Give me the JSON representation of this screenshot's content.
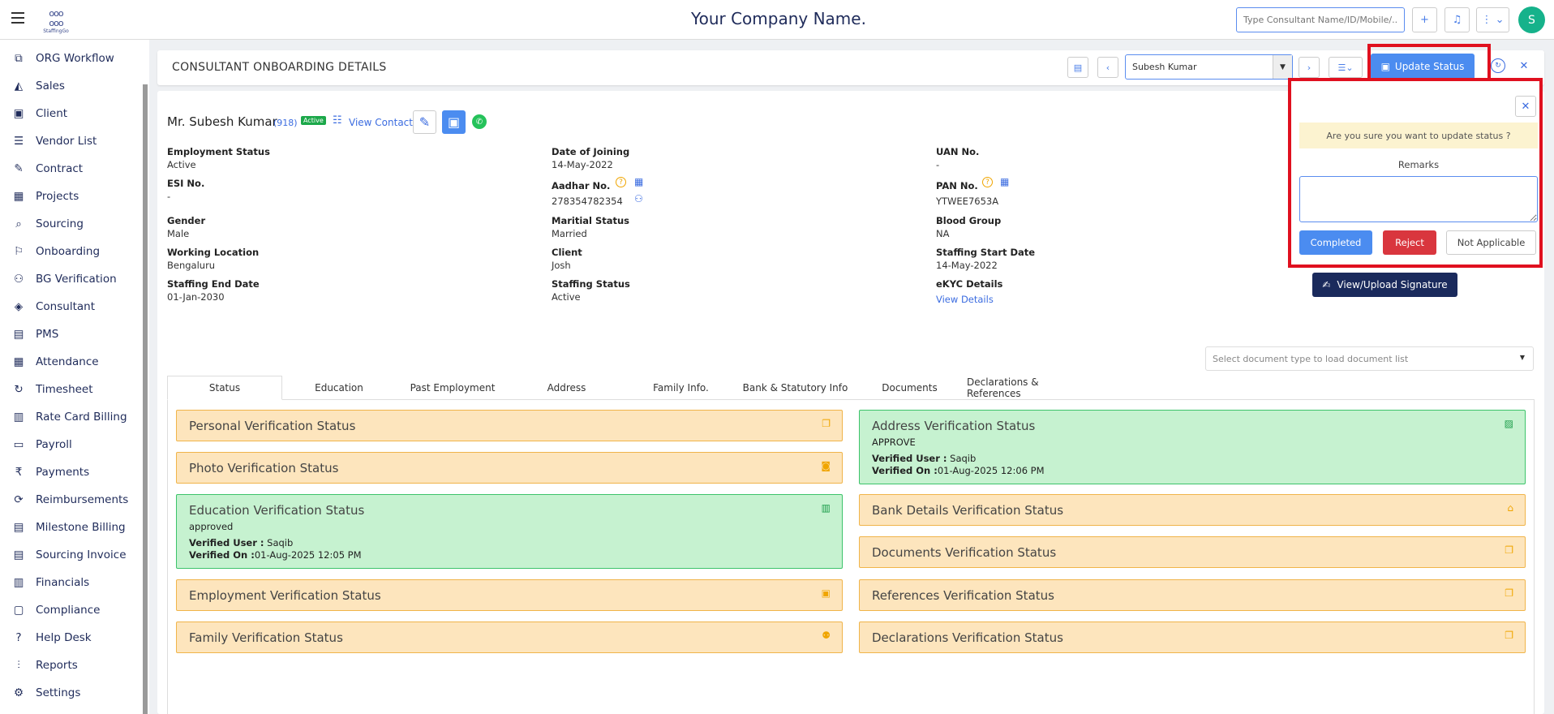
{
  "app": {
    "logo_text": "StaffingGo",
    "company_name": "Your Company Name.",
    "avatar_initial": "S",
    "search_placeholder": "Type Consultant Name/ID/Mobile/..."
  },
  "sidebar": {
    "items": [
      {
        "label": "ORG Workflow",
        "icon": "org-workflow-icon"
      },
      {
        "label": "Sales",
        "icon": "sales-icon"
      },
      {
        "label": "Client",
        "icon": "client-icon"
      },
      {
        "label": "Vendor List",
        "icon": "vendor-list-icon"
      },
      {
        "label": "Contract",
        "icon": "contract-icon"
      },
      {
        "label": "Projects",
        "icon": "projects-icon"
      },
      {
        "label": "Sourcing",
        "icon": "sourcing-icon"
      },
      {
        "label": "Onboarding",
        "icon": "onboarding-icon"
      },
      {
        "label": "BG Verification",
        "icon": "bg-verification-icon"
      },
      {
        "label": "Consultant",
        "icon": "consultant-icon"
      },
      {
        "label": "PMS",
        "icon": "pms-icon"
      },
      {
        "label": "Attendance",
        "icon": "attendance-icon"
      },
      {
        "label": "Timesheet",
        "icon": "timesheet-icon"
      },
      {
        "label": "Rate Card Billing",
        "icon": "rate-card-icon"
      },
      {
        "label": "Payroll",
        "icon": "payroll-icon"
      },
      {
        "label": "Payments",
        "icon": "rupee-icon"
      },
      {
        "label": "Reimbursements",
        "icon": "reimbursements-icon"
      },
      {
        "label": "Milestone Billing",
        "icon": "milestone-icon"
      },
      {
        "label": "Sourcing Invoice",
        "icon": "invoice-icon"
      },
      {
        "label": "Financials",
        "icon": "financials-icon"
      },
      {
        "label": "Compliance",
        "icon": "compliance-icon"
      },
      {
        "label": "Help Desk",
        "icon": "help-icon"
      },
      {
        "label": "Reports",
        "icon": "reports-icon"
      },
      {
        "label": "Settings",
        "icon": "gear-icon"
      }
    ]
  },
  "header": {
    "title": "CONSULTANT ONBOARDING DETAILS",
    "selected_consultant": "Subesh Kumar",
    "update_label": "Update Status"
  },
  "profile": {
    "name": "Mr. Subesh Kumar",
    "id": "(918)",
    "status_badge": "Active",
    "view_contact": "View Contact"
  },
  "fields": {
    "employment_status": {
      "label": "Employment Status",
      "value": "Active"
    },
    "doj": {
      "label": "Date of Joining",
      "value": "14-May-2022"
    },
    "uan": {
      "label": "UAN No.",
      "value": "-"
    },
    "esi": {
      "label": "ESI No.",
      "value": "-"
    },
    "aadhar": {
      "label": "Aadhar No.",
      "value": "278354782354"
    },
    "pan": {
      "label": "PAN No.",
      "value": "YTWEE7653A"
    },
    "gender": {
      "label": "Gender",
      "value": "Male"
    },
    "marital": {
      "label": "Maritial Status",
      "value": "Married"
    },
    "blood": {
      "label": "Blood Group",
      "value": "NA"
    },
    "location": {
      "label": "Working Location",
      "value": "Bengaluru"
    },
    "client": {
      "label": "Client",
      "value": "Josh"
    },
    "staff_start": {
      "label": "Staffing Start Date",
      "value": "14-May-2022"
    },
    "staff_end": {
      "label": "Staffing End Date",
      "value": "01-Jan-2030"
    },
    "staff_status": {
      "label": "Staffing Status",
      "value": "Active"
    },
    "ekyc": {
      "label": "eKYC Details",
      "value": "View Details"
    }
  },
  "doc_select_placeholder": "Select document type to load document list",
  "tabs": [
    "Status",
    "Education",
    "Past Employment",
    "Address",
    "Family Info.",
    "Bank & Statutory Info",
    "Documents",
    "Declarations & References"
  ],
  "verification": {
    "personal": "Personal Verification Status",
    "photo": "Photo Verification Status",
    "education": {
      "title": "Education Verification Status",
      "status": "approved",
      "user_label": "Verified User :",
      "user": "Saqib",
      "on_label": "Verified On :",
      "on": "01-Aug-2025 12:05 PM"
    },
    "employment": "Employment Verification Status",
    "family": "Family Verification Status",
    "address": {
      "title": "Address Verification Status",
      "status": "APPROVE",
      "user_label": "Verified User :",
      "user": "Saqib",
      "on_label": "Verified On :",
      "on": "01-Aug-2025 12:06 PM"
    },
    "bank": "Bank Details Verification Status",
    "documents": "Documents Verification Status",
    "references": "References Verification Status",
    "declarations": "Declarations Verification Status"
  },
  "popup": {
    "warning": "Are you sure you want to update status ?",
    "remarks_label": "Remarks",
    "completed": "Completed",
    "reject": "Reject",
    "not_applicable": "Not Applicable"
  },
  "signature_button": "View/Upload Signature"
}
